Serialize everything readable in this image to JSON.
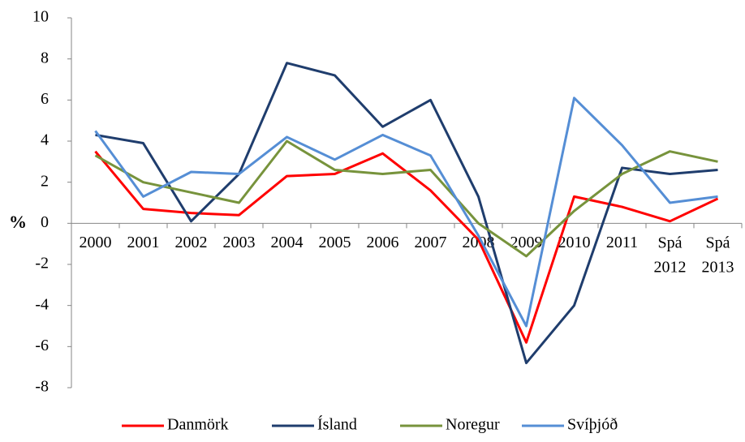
{
  "chart_data": {
    "type": "line",
    "y_label": "%",
    "categories": [
      "2000",
      "2001",
      "2002",
      "2003",
      "2004",
      "2005",
      "2006",
      "2007",
      "2008",
      "2009",
      "2010",
      "2011",
      "Spá 2012",
      "Spá 2013"
    ],
    "series": [
      {
        "name": "Danmörk",
        "color": "#ff0000",
        "values": [
          3.5,
          0.7,
          0.5,
          0.4,
          2.3,
          2.4,
          3.4,
          1.6,
          -0.8,
          -5.8,
          1.3,
          0.8,
          0.1,
          1.2
        ]
      },
      {
        "name": "Ísland",
        "color": "#1f3d6d",
        "values": [
          4.3,
          3.9,
          0.1,
          2.4,
          7.8,
          7.2,
          4.7,
          6.0,
          1.3,
          -6.8,
          -4.0,
          2.7,
          2.4,
          2.6
        ]
      },
      {
        "name": "Noregur",
        "color": "#77933c",
        "values": [
          3.3,
          2.0,
          1.5,
          1.0,
          4.0,
          2.6,
          2.4,
          2.6,
          0.0,
          -1.6,
          0.6,
          2.4,
          3.5,
          3.0
        ]
      },
      {
        "name": "Svíþjóð",
        "color": "#558ed5",
        "values": [
          4.5,
          1.3,
          2.5,
          2.4,
          4.2,
          3.1,
          4.3,
          3.3,
          -0.6,
          -5.0,
          6.1,
          3.8,
          1.0,
          1.3
        ]
      }
    ],
    "ylim": [
      -8,
      10
    ],
    "yticks": [
      -8,
      -6,
      -4,
      -2,
      0,
      2,
      4,
      6,
      8,
      10
    ],
    "grid": false,
    "legend": "bottom"
  }
}
